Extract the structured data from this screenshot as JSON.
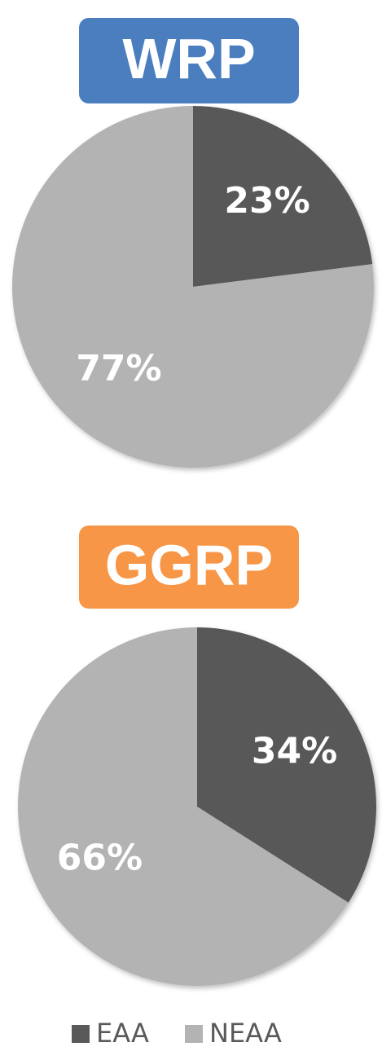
{
  "chart_data": [
    {
      "type": "pie",
      "title": "WRP",
      "title_color": "#4a7ebf",
      "values": [
        23,
        77
      ],
      "value_labels": [
        "23%",
        "77%"
      ]
    },
    {
      "type": "pie",
      "title": "GGRP",
      "title_color": "#f79646",
      "values": [
        34,
        66
      ],
      "value_labels": [
        "34%",
        "66%"
      ]
    }
  ],
  "legend": {
    "labels": [
      "EAA",
      "NEAA"
    ],
    "colors": [
      "#595959",
      "#b3b3b3"
    ]
  }
}
